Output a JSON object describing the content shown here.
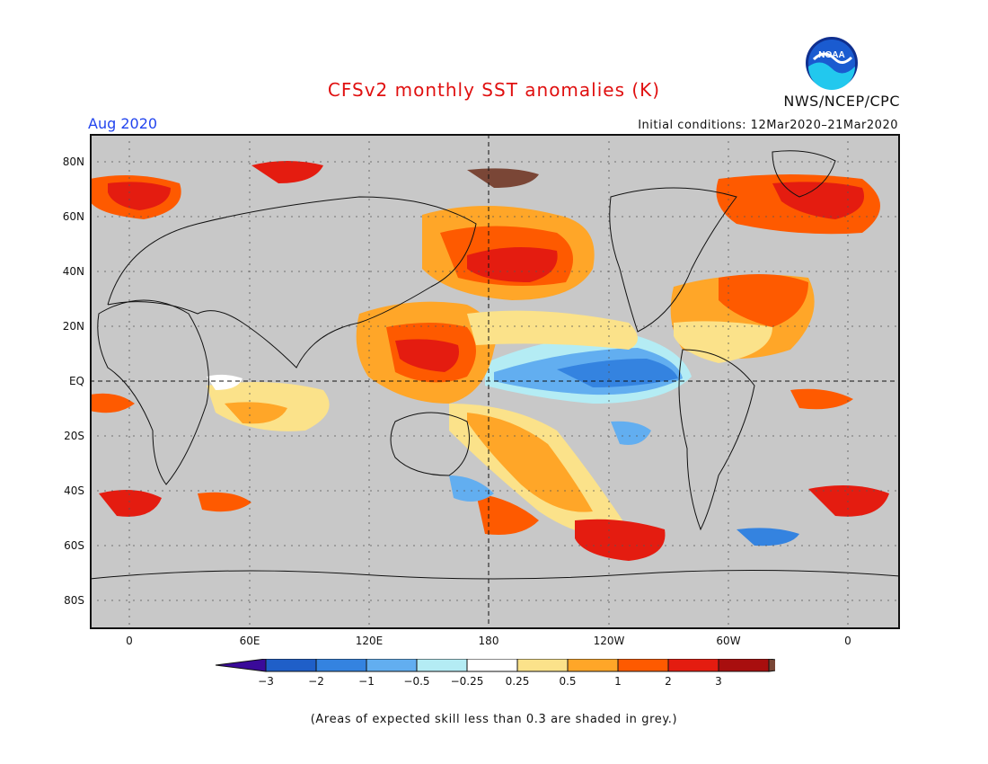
{
  "title": "CFSv2 monthly SST anomalies (K)",
  "period": "Aug 2020",
  "initial_conditions": "Initial conditions: 12Mar2020–21Mar2020",
  "agency": "NWS/NCEP/CPC",
  "logo_text": "NOAA",
  "note": "(Areas of expected skill less than 0.3 are shaded in grey.)",
  "lat_labels": [
    "80N",
    "60N",
    "40N",
    "20N",
    "EQ",
    "20S",
    "40S",
    "60S",
    "80S"
  ],
  "lon_labels": [
    "0",
    "60E",
    "120E",
    "180",
    "120W",
    "60W",
    "0"
  ],
  "colorbar": {
    "ticks": [
      "−3",
      "−2",
      "−1",
      "−0.5",
      "−0.25",
      "0.25",
      "0.5",
      "1",
      "2",
      "3"
    ],
    "colors": [
      "#3a0a9a",
      "#1f5fc8",
      "#3483e0",
      "#62aef0",
      "#b4ecf4",
      "#ffffff",
      "#fbe28a",
      "#ffa628",
      "#fe5a00",
      "#e41c10",
      "#a80e0e",
      "#7a4636"
    ]
  },
  "colors": {
    "grey": "#c8c8c8",
    "title_red": "#e01010",
    "period_blue": "#2244ee"
  }
}
